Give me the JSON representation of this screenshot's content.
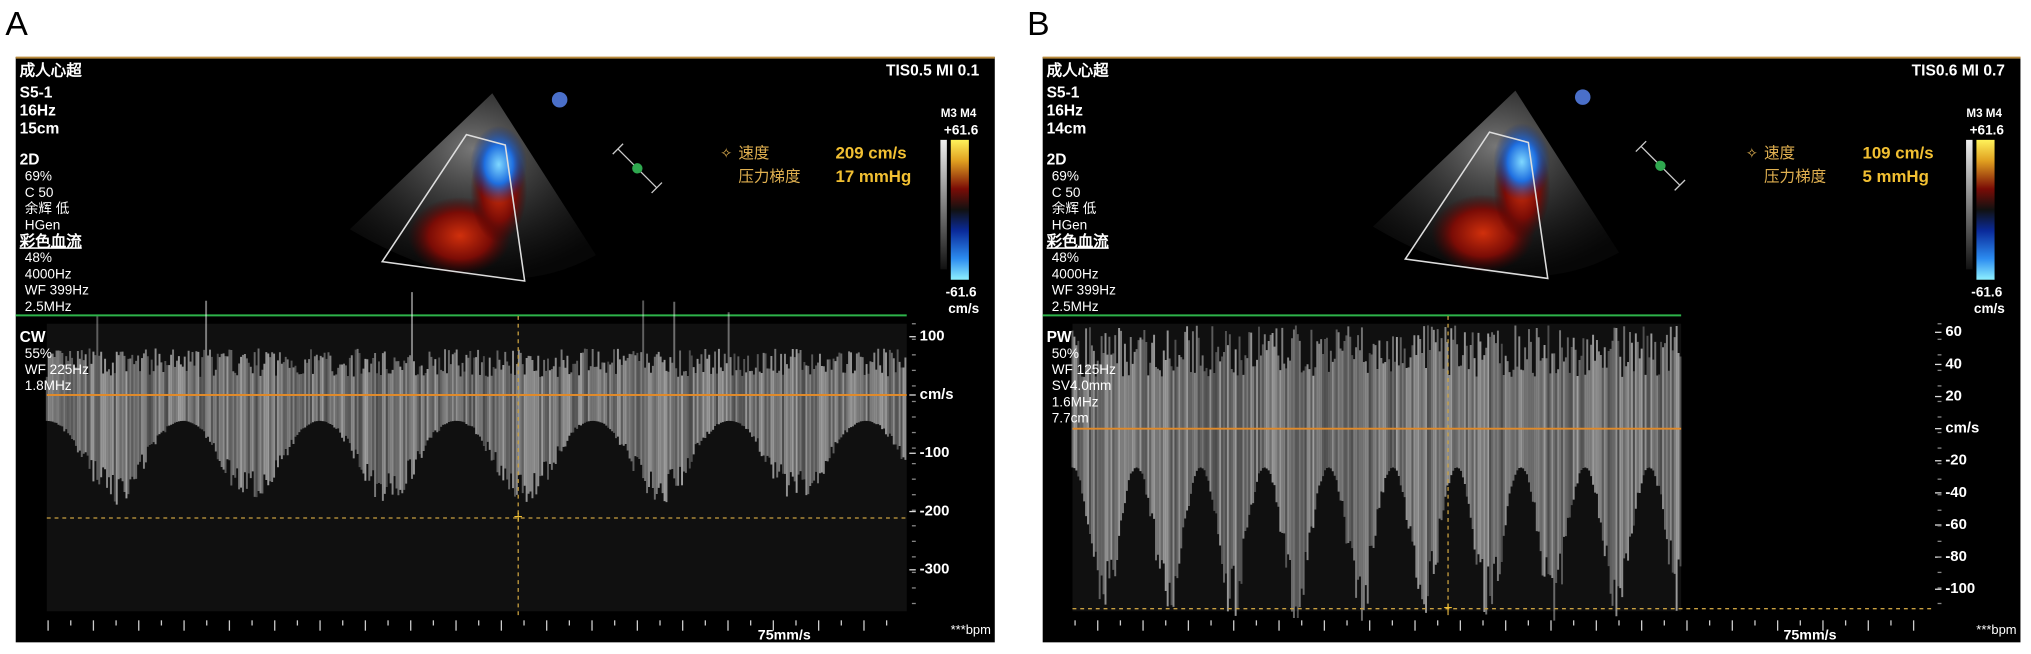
{
  "panels": [
    {
      "label": "A",
      "header": "成人心超",
      "tis_mi": "TIS0.5  MI 0.1",
      "settings": [
        "S5-1",
        "16Hz",
        "15cm",
        "2D",
        "69%",
        "C 50",
        "余辉 低",
        "HGen",
        "彩色血流",
        "48%",
        "4000Hz",
        "WF 399Hz",
        "2.5MHz"
      ],
      "doppler_settings": [
        "CW",
        "55%",
        "WF 225Hz",
        "1.8MHz"
      ],
      "color_scale": {
        "mode": "M3 M4",
        "max": "+61.6",
        "min": "-61.6",
        "unit": "cm/s"
      },
      "measurements": [
        {
          "label": "速度",
          "value": "209 cm/s"
        },
        {
          "label": "压力梯度",
          "value": "17 mmHg"
        }
      ],
      "velocity_axis": {
        "unit": "cm/s",
        "ticks": [
          100,
          -100,
          -200,
          -300
        ]
      },
      "footer": {
        "sweep": "75mm/s",
        "rate": "***bpm"
      }
    },
    {
      "label": "B",
      "header": "成人心超",
      "tis_mi": "TIS0.6  MI 0.7",
      "settings": [
        "S5-1",
        "16Hz",
        "14cm",
        "2D",
        "69%",
        "C 50",
        "余辉 低",
        "HGen",
        "彩色血流",
        "48%",
        "4000Hz",
        "WF 399Hz",
        "2.5MHz"
      ],
      "doppler_settings": [
        "PW",
        "50%",
        "WF 125Hz",
        "SV4.0mm",
        "1.6MHz",
        "7.7cm"
      ],
      "color_scale": {
        "mode": "M3 M4",
        "max": "+61.6",
        "min": "-61.6",
        "unit": "cm/s"
      },
      "measurements": [
        {
          "label": "速度",
          "value": "109 cm/s"
        },
        {
          "label": "压力梯度",
          "value": "5 mmHg"
        }
      ],
      "velocity_axis": {
        "unit": "cm/s",
        "ticks": [
          60,
          40,
          20,
          -20,
          -40,
          -60,
          -80,
          -100
        ]
      },
      "footer": {
        "sweep": "75mm/s",
        "rate": "***bpm"
      }
    }
  ]
}
